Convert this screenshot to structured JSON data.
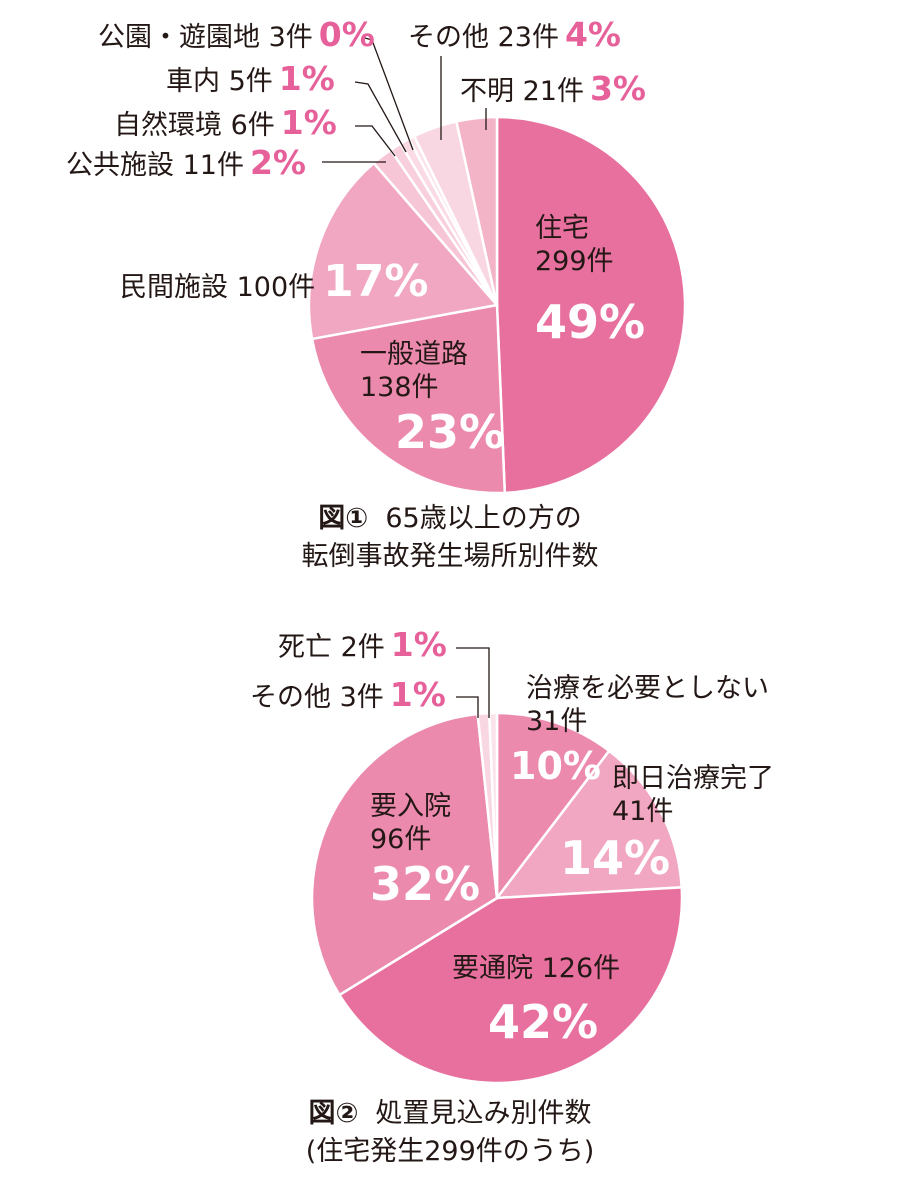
{
  "chart_data": [
    {
      "type": "pie",
      "caption": {
        "fig": "図①",
        "line1": "65歳以上の方の",
        "line2": "転倒事故発生場所別件数"
      },
      "slices": [
        {
          "label": "住宅",
          "count": "299件",
          "percent": "49%",
          "value": 299,
          "color": "#e8709e"
        },
        {
          "label": "一般道路",
          "count": "138件",
          "percent": "23%",
          "value": 138,
          "color": "#ec8aae"
        },
        {
          "label": "民間施設",
          "count": "100件",
          "percent": "17%",
          "value": 100,
          "color": "#f1a7c1"
        },
        {
          "label": "公共施設",
          "count": "11件",
          "percent": "2%",
          "value": 11,
          "color": "#f6c5d6"
        },
        {
          "label": "自然環境",
          "count": "6件",
          "percent": "1%",
          "value": 6,
          "color": "#f8d0dd"
        },
        {
          "label": "車内",
          "count": "5件",
          "percent": "1%",
          "value": 5,
          "color": "#fadbe5"
        },
        {
          "label": "公園・遊園地",
          "count": "3件",
          "percent": "0%",
          "value": 3,
          "color": "#fbe3ea"
        },
        {
          "label": "その他",
          "count": "23件",
          "percent": "4%",
          "value": 23,
          "color": "#f9d7e2"
        },
        {
          "label": "不明",
          "count": "21件",
          "percent": "3%",
          "value": 21,
          "color": "#f4b4c8"
        }
      ]
    },
    {
      "type": "pie",
      "caption": {
        "fig": "図②",
        "line1": "処置見込み別件数",
        "line2": "(住宅発生299件のうち)"
      },
      "slices": [
        {
          "label": "治療を必要としない",
          "count": "31件",
          "percent": "10%",
          "value": 31,
          "color": "#ec8aae"
        },
        {
          "label": "即日治療完了",
          "count": "41件",
          "percent": "14%",
          "value": 41,
          "color": "#f1a7c1"
        },
        {
          "label": "要通院",
          "count": "126件",
          "percent": "42%",
          "value": 126,
          "color": "#e8709e"
        },
        {
          "label": "要入院",
          "count": "96件",
          "percent": "32%",
          "value": 96,
          "color": "#ec8aae"
        },
        {
          "label": "その他",
          "count": "3件",
          "percent": "1%",
          "value": 3,
          "color": "#f9d7e2"
        },
        {
          "label": "死亡",
          "count": "2件",
          "percent": "1%",
          "value": 2,
          "color": "#fbe3ea"
        }
      ]
    }
  ]
}
